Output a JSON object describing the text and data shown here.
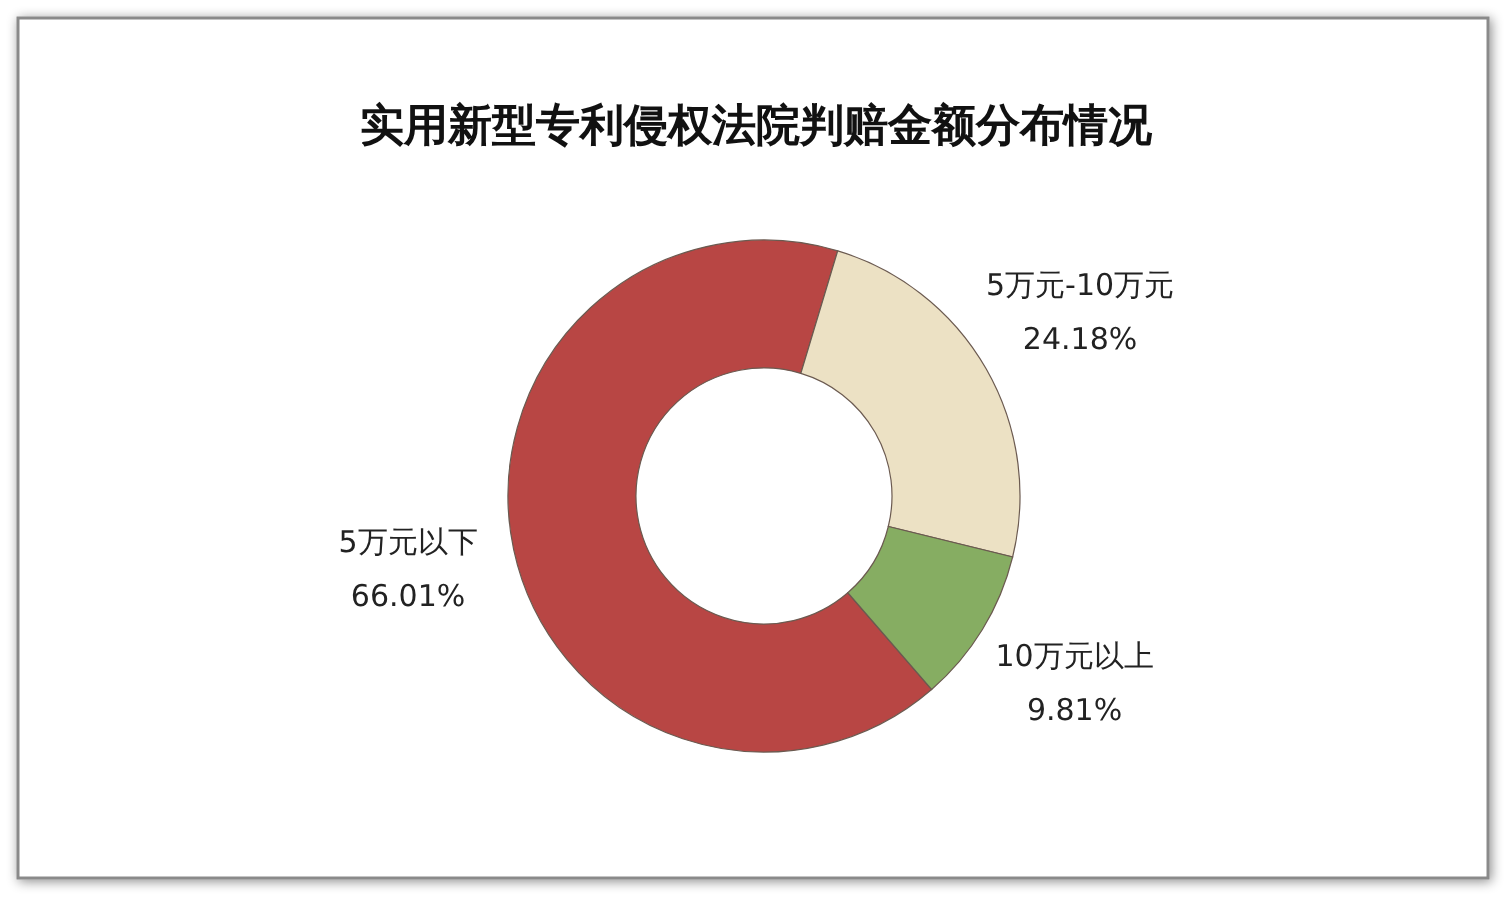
{
  "chart_data": {
    "type": "donut",
    "title": "实用新型专利侵权法院判赔金额分布情况",
    "categories": [
      "5万元以下",
      "5万元-10万元",
      "10万元以上"
    ],
    "values": [
      66.01,
      24.18,
      9.81
    ],
    "colors": [
      "#b84644",
      "#ece1c4",
      "#86ad62"
    ],
    "value_labels": [
      "66.01%",
      "24.18%",
      "9.81%"
    ]
  }
}
